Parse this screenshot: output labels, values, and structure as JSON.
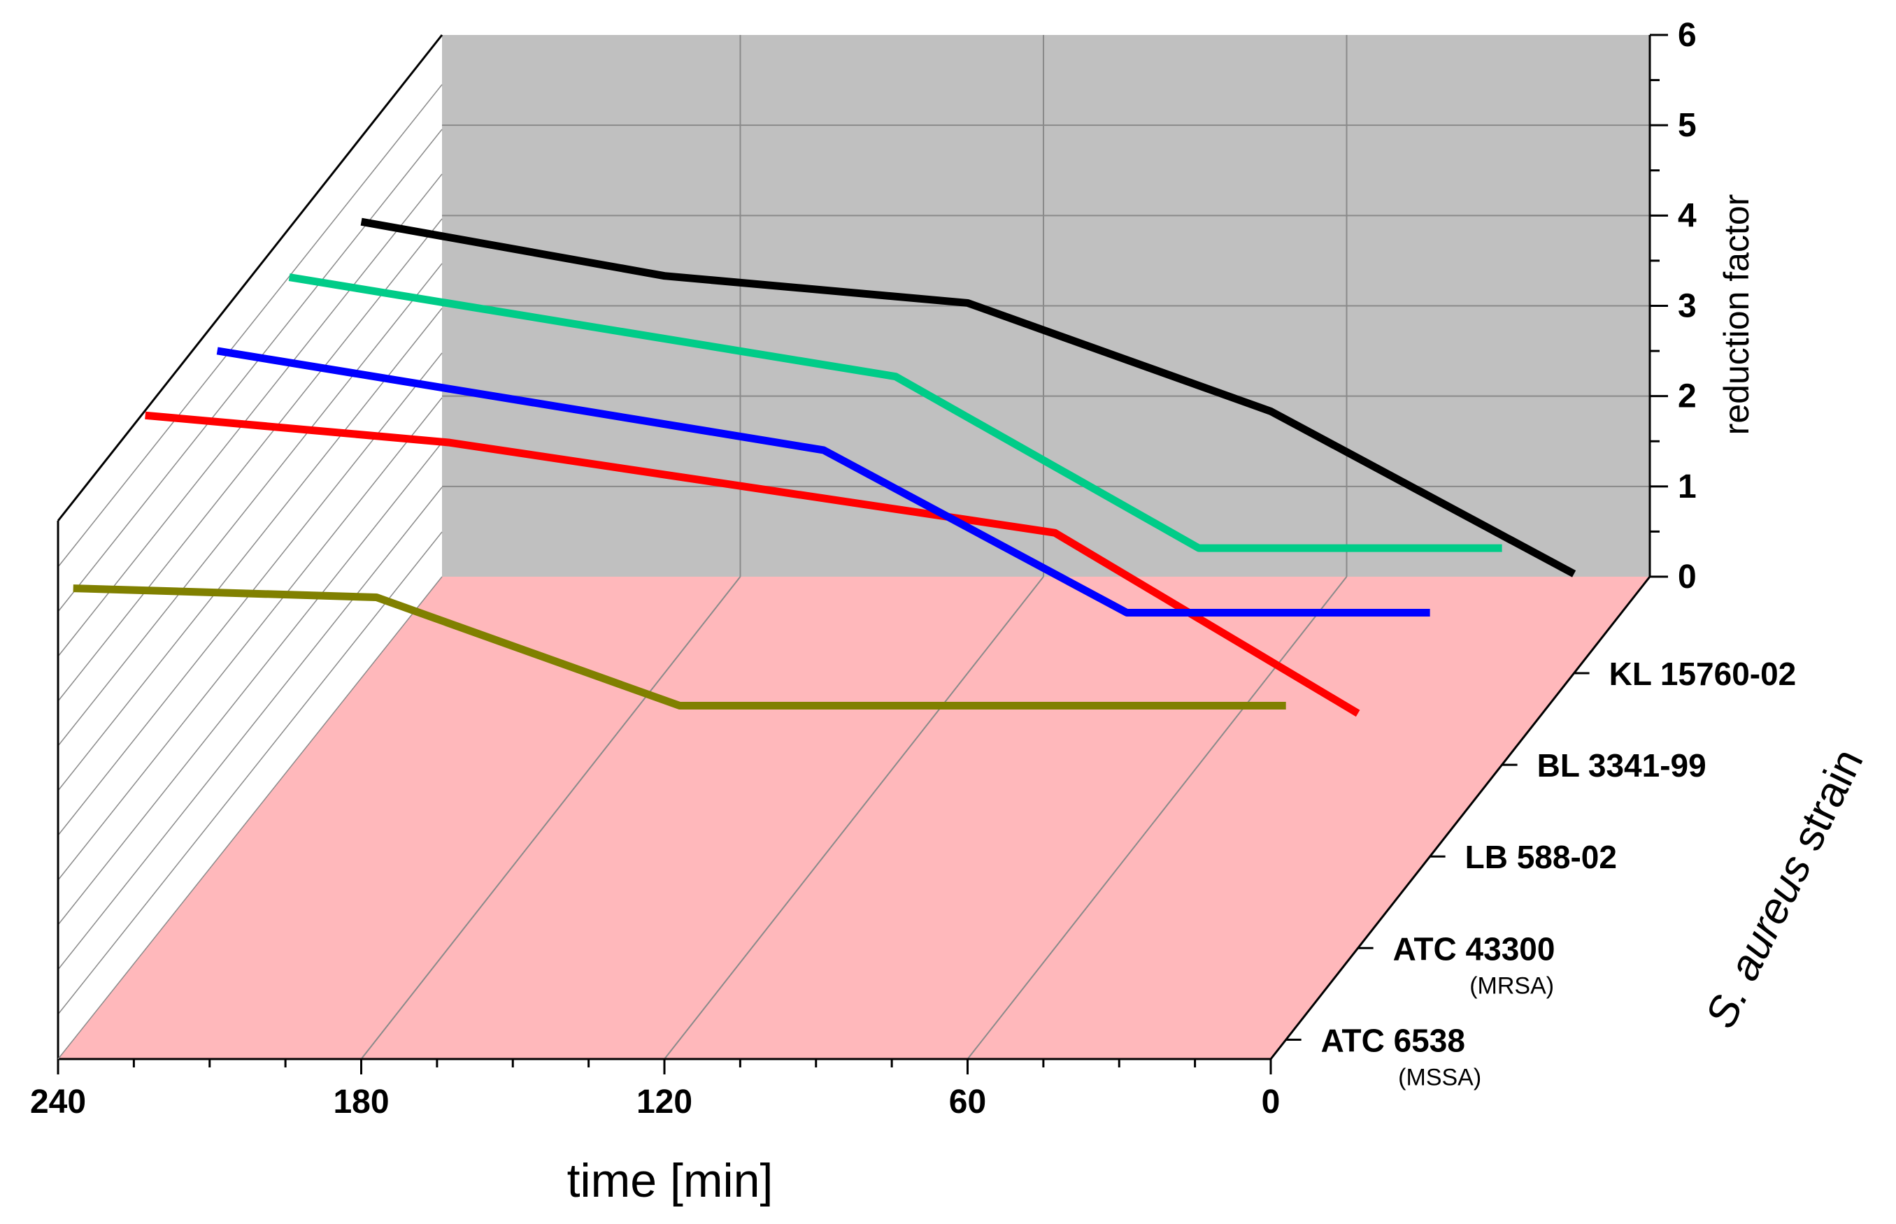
{
  "chart_data": {
    "type": "line",
    "style": "3d-waterfall",
    "title": "",
    "xlabel": "time [min]",
    "ylabel": "reduction factor",
    "zlabel_italic": "S. aureus",
    "zlabel_rest": " strain",
    "xlim": [
      240,
      0
    ],
    "ylim": [
      0,
      6
    ],
    "x_ticks": [
      "240",
      "180",
      "120",
      "60",
      "0"
    ],
    "y_ticks": [
      "0",
      "1",
      "2",
      "3",
      "4",
      "5",
      "6"
    ],
    "colors": {
      "floor": "#ffb8bb",
      "back_wall": "#c0c0c0",
      "grid": "#8a8a8a"
    },
    "series": [
      {
        "name": "ATC 6538",
        "sublabel": "(MSSA)",
        "color": "#808000",
        "x": [
          240,
          180,
          120,
          0
        ],
        "y": [
          5.0,
          4.9,
          3.7,
          3.7
        ]
      },
      {
        "name": "ATC 43300",
        "sublabel": "(MRSA)",
        "color": "#ff0000",
        "x": [
          240,
          180,
          120,
          60,
          0
        ],
        "y": [
          5.9,
          5.6,
          5.1,
          4.6,
          2.6
        ]
      },
      {
        "name": "LB 588-02",
        "sublabel": "",
        "color": "#0000ff",
        "x": [
          240,
          120,
          60,
          0
        ],
        "y": [
          5.6,
          4.5,
          2.7,
          2.7
        ]
      },
      {
        "name": "BL 3341-99",
        "sublabel": "",
        "color": "#00cc88",
        "x": [
          240,
          120,
          60,
          0
        ],
        "y": [
          5.4,
          4.3,
          2.4,
          2.4
        ]
      },
      {
        "name": "KL 15760-02",
        "sublabel": "",
        "color": "#000000",
        "x": [
          240,
          180,
          120,
          60,
          0
        ],
        "y": [
          5.0,
          4.4,
          4.1,
          2.9,
          1.1
        ]
      }
    ]
  }
}
